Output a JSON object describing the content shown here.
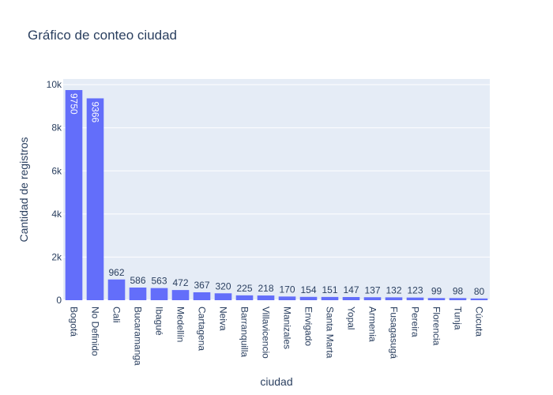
{
  "chart_data": {
    "type": "bar",
    "title": "Gráfico de conteo ciudad",
    "xlabel": "ciudad",
    "ylabel": "Cantidad de registros",
    "ylim": [
      0,
      10263
    ],
    "yticks": [
      {
        "value": 0,
        "label": "0"
      },
      {
        "value": 2000,
        "label": "2k"
      },
      {
        "value": 4000,
        "label": "4k"
      },
      {
        "value": 6000,
        "label": "6k"
      },
      {
        "value": 8000,
        "label": "8k"
      },
      {
        "value": 10000,
        "label": "10k"
      }
    ],
    "categories": [
      "Bogotá",
      "No Definido",
      "Cali",
      "Bucaramanga",
      "Ibagué",
      "Medellín",
      "Cartagena",
      "Neiva",
      "Barranquilla",
      "Villavicencio",
      "Manizales",
      "Envigado",
      "Santa Marta",
      "Yopal",
      "Armenia",
      "Fusagasugá",
      "Pereira",
      "Florencia",
      "Tunja",
      "Cúcuta"
    ],
    "values": [
      9750,
      9366,
      962,
      586,
      563,
      472,
      367,
      320,
      225,
      218,
      170,
      154,
      151,
      147,
      137,
      132,
      123,
      99,
      98,
      80
    ],
    "bar_color": "#636efa",
    "plot_background": "#e5ecf6",
    "grid": true,
    "legend": "none"
  }
}
